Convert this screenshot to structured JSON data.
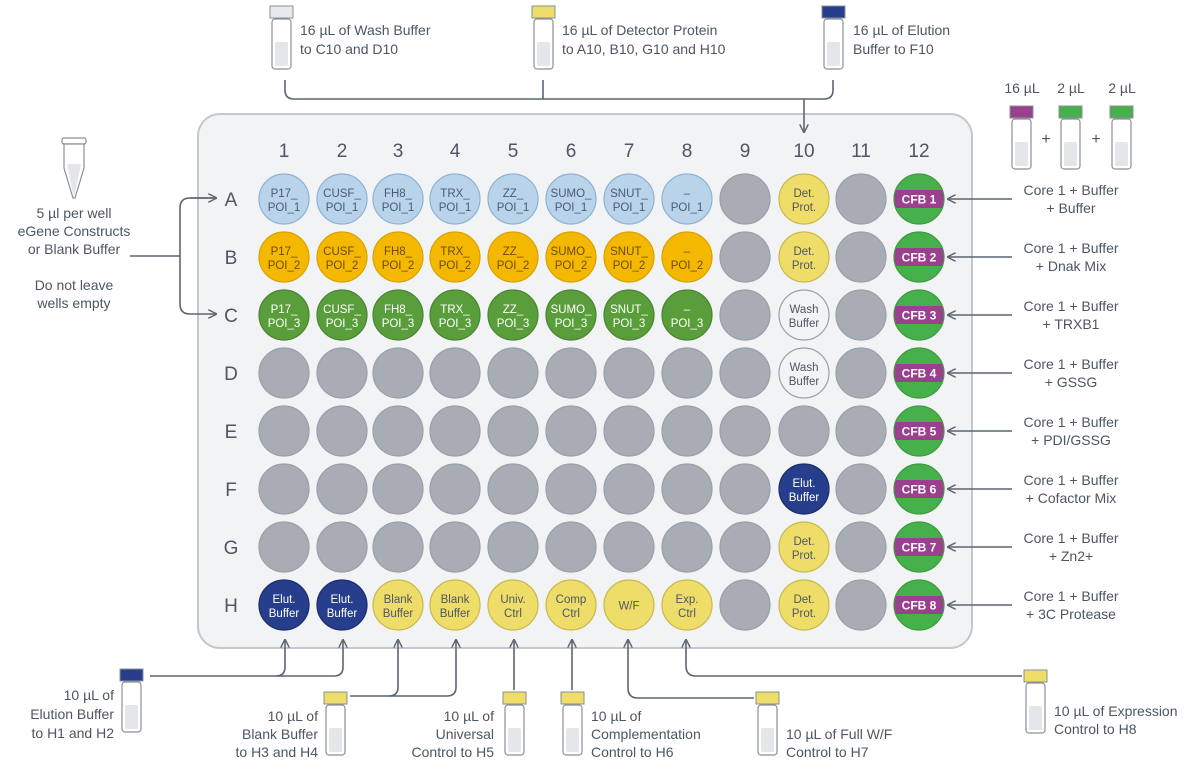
{
  "columns": [
    "1",
    "2",
    "3",
    "4",
    "5",
    "6",
    "7",
    "8",
    "9",
    "10",
    "11",
    "12"
  ],
  "rows": [
    "A",
    "B",
    "C",
    "D",
    "E",
    "F",
    "G",
    "H"
  ],
  "colors": {
    "plate_fill": "#f2f3f5",
    "plate_border": "#c3c8cf",
    "empty_well": "#a7acb5",
    "blue_light": "#b9d3ea",
    "orange": "#f5b800",
    "green": "#5a9e3c",
    "yellow": "#efdd6a",
    "navy": "#263e8c",
    "white_well": "#f2f3f5",
    "magenta": "#9b3f8f",
    "green_bright": "#46b04a",
    "line": "#5d6570",
    "text": "#4d5662"
  },
  "wells": {
    "A": [
      {
        "l1": "P17_",
        "l2": "POI_1",
        "style": "blue"
      },
      {
        "l1": "CUSF_",
        "l2": "POI_1",
        "style": "blue"
      },
      {
        "l1": "FH8_",
        "l2": "POI_1",
        "style": "blue"
      },
      {
        "l1": "TRX_",
        "l2": "POI_1",
        "style": "blue"
      },
      {
        "l1": "ZZ_",
        "l2": "POI_1",
        "style": "blue"
      },
      {
        "l1": "SUMO_",
        "l2": "POI_1",
        "style": "blue"
      },
      {
        "l1": "SNUT_",
        "l2": "POI_1",
        "style": "blue"
      },
      {
        "l1": "–",
        "l2": "POI_1",
        "style": "blue"
      },
      {
        "l1": "",
        "l2": "",
        "style": "empty"
      },
      {
        "l1": "Det.",
        "l2": "Prot.",
        "style": "yellow"
      },
      {
        "l1": "",
        "l2": "",
        "style": "empty"
      },
      {
        "l1": "CFB 1",
        "l2": "",
        "style": "cfb"
      }
    ],
    "B": [
      {
        "l1": "P17_",
        "l2": "POI_2",
        "style": "orange"
      },
      {
        "l1": "CUSF_",
        "l2": "POI_2",
        "style": "orange"
      },
      {
        "l1": "FH8_",
        "l2": "POI_2",
        "style": "orange"
      },
      {
        "l1": "TRX_",
        "l2": "POI_2",
        "style": "orange"
      },
      {
        "l1": "ZZ_",
        "l2": "POI_2",
        "style": "orange"
      },
      {
        "l1": "SUMO_",
        "l2": "POI_2",
        "style": "orange"
      },
      {
        "l1": "SNUT_",
        "l2": "POI_2",
        "style": "orange"
      },
      {
        "l1": "–",
        "l2": "POI_2",
        "style": "orange"
      },
      {
        "l1": "",
        "l2": "",
        "style": "empty"
      },
      {
        "l1": "Det.",
        "l2": "Prot.",
        "style": "yellow"
      },
      {
        "l1": "",
        "l2": "",
        "style": "empty"
      },
      {
        "l1": "CFB 2",
        "l2": "",
        "style": "cfb"
      }
    ],
    "C": [
      {
        "l1": "P17_",
        "l2": "POI_3",
        "style": "green"
      },
      {
        "l1": "CUSF_",
        "l2": "POI_3",
        "style": "green"
      },
      {
        "l1": "FH8_",
        "l2": "POI_3",
        "style": "green"
      },
      {
        "l1": "TRX_",
        "l2": "POI_3",
        "style": "green"
      },
      {
        "l1": "ZZ_",
        "l2": "POI_3",
        "style": "green"
      },
      {
        "l1": "SUMO_",
        "l2": "POI_3",
        "style": "green"
      },
      {
        "l1": "SNUT_",
        "l2": "POI_3",
        "style": "green"
      },
      {
        "l1": "–",
        "l2": "POI_3",
        "style": "green"
      },
      {
        "l1": "",
        "l2": "",
        "style": "empty"
      },
      {
        "l1": "Wash",
        "l2": "Buffer",
        "style": "white"
      },
      {
        "l1": "",
        "l2": "",
        "style": "empty"
      },
      {
        "l1": "CFB 3",
        "l2": "",
        "style": "cfb"
      }
    ],
    "D": [
      {
        "l1": "",
        "l2": "",
        "style": "empty"
      },
      {
        "l1": "",
        "l2": "",
        "style": "empty"
      },
      {
        "l1": "",
        "l2": "",
        "style": "empty"
      },
      {
        "l1": "",
        "l2": "",
        "style": "empty"
      },
      {
        "l1": "",
        "l2": "",
        "style": "empty"
      },
      {
        "l1": "",
        "l2": "",
        "style": "empty"
      },
      {
        "l1": "",
        "l2": "",
        "style": "empty"
      },
      {
        "l1": "",
        "l2": "",
        "style": "empty"
      },
      {
        "l1": "",
        "l2": "",
        "style": "empty"
      },
      {
        "l1": "Wash",
        "l2": "Buffer",
        "style": "white"
      },
      {
        "l1": "",
        "l2": "",
        "style": "empty"
      },
      {
        "l1": "CFB 4",
        "l2": "",
        "style": "cfb"
      }
    ],
    "E": [
      {
        "l1": "",
        "l2": "",
        "style": "empty"
      },
      {
        "l1": "",
        "l2": "",
        "style": "empty"
      },
      {
        "l1": "",
        "l2": "",
        "style": "empty"
      },
      {
        "l1": "",
        "l2": "",
        "style": "empty"
      },
      {
        "l1": "",
        "l2": "",
        "style": "empty"
      },
      {
        "l1": "",
        "l2": "",
        "style": "empty"
      },
      {
        "l1": "",
        "l2": "",
        "style": "empty"
      },
      {
        "l1": "",
        "l2": "",
        "style": "empty"
      },
      {
        "l1": "",
        "l2": "",
        "style": "empty"
      },
      {
        "l1": "",
        "l2": "",
        "style": "empty"
      },
      {
        "l1": "",
        "l2": "",
        "style": "empty"
      },
      {
        "l1": "CFB 5",
        "l2": "",
        "style": "cfb"
      }
    ],
    "F": [
      {
        "l1": "",
        "l2": "",
        "style": "empty"
      },
      {
        "l1": "",
        "l2": "",
        "style": "empty"
      },
      {
        "l1": "",
        "l2": "",
        "style": "empty"
      },
      {
        "l1": "",
        "l2": "",
        "style": "empty"
      },
      {
        "l1": "",
        "l2": "",
        "style": "empty"
      },
      {
        "l1": "",
        "l2": "",
        "style": "empty"
      },
      {
        "l1": "",
        "l2": "",
        "style": "empty"
      },
      {
        "l1": "",
        "l2": "",
        "style": "empty"
      },
      {
        "l1": "",
        "l2": "",
        "style": "empty"
      },
      {
        "l1": "Elut.",
        "l2": "Buffer",
        "style": "navy"
      },
      {
        "l1": "",
        "l2": "",
        "style": "empty"
      },
      {
        "l1": "CFB 6",
        "l2": "",
        "style": "cfb"
      }
    ],
    "G": [
      {
        "l1": "",
        "l2": "",
        "style": "empty"
      },
      {
        "l1": "",
        "l2": "",
        "style": "empty"
      },
      {
        "l1": "",
        "l2": "",
        "style": "empty"
      },
      {
        "l1": "",
        "l2": "",
        "style": "empty"
      },
      {
        "l1": "",
        "l2": "",
        "style": "empty"
      },
      {
        "l1": "",
        "l2": "",
        "style": "empty"
      },
      {
        "l1": "",
        "l2": "",
        "style": "empty"
      },
      {
        "l1": "",
        "l2": "",
        "style": "empty"
      },
      {
        "l1": "",
        "l2": "",
        "style": "empty"
      },
      {
        "l1": "Det.",
        "l2": "Prot.",
        "style": "yellow"
      },
      {
        "l1": "",
        "l2": "",
        "style": "empty"
      },
      {
        "l1": "CFB 7",
        "l2": "",
        "style": "cfb"
      }
    ],
    "H": [
      {
        "l1": "Elut.",
        "l2": "Buffer",
        "style": "navy"
      },
      {
        "l1": "Elut.",
        "l2": "Buffer",
        "style": "navy"
      },
      {
        "l1": "Blank",
        "l2": "Buffer",
        "style": "yellow"
      },
      {
        "l1": "Blank",
        "l2": "Buffer",
        "style": "yellow"
      },
      {
        "l1": "Univ.",
        "l2": "Ctrl",
        "style": "yellow"
      },
      {
        "l1": "Comp",
        "l2": "Ctrl",
        "style": "yellow"
      },
      {
        "l1": "W/F",
        "l2": "",
        "style": "yellow"
      },
      {
        "l1": "Exp.",
        "l2": "Ctrl",
        "style": "yellow"
      },
      {
        "l1": "",
        "l2": "",
        "style": "empty"
      },
      {
        "l1": "Det.",
        "l2": "Prot.",
        "style": "yellow"
      },
      {
        "l1": "",
        "l2": "",
        "style": "empty"
      },
      {
        "l1": "CFB 8",
        "l2": "",
        "style": "cfb"
      }
    ]
  },
  "top_annotations": [
    {
      "cap": "light",
      "lines": [
        "16 µL of Wash Buffer",
        "to C10 and D10"
      ]
    },
    {
      "cap": "yellow",
      "lines": [
        "16 µL of Detector Protein",
        "to  A10, B10, G10 and H10"
      ]
    },
    {
      "cap": "navy",
      "lines": [
        "16 µL of Elution",
        "Buffer to F10"
      ]
    }
  ],
  "left_annotation": {
    "lines_a": [
      "5 µl per well",
      "eGene Constructs",
      "or Blank Buffer"
    ],
    "lines_b": [
      "Do not leave",
      "wells empty"
    ]
  },
  "right_header": {
    "amounts": [
      "16 µL",
      "2 µL",
      "2 µL"
    ],
    "plus": "+"
  },
  "right_annotations": [
    [
      "Core 1 + Buffer",
      "+ Buffer"
    ],
    [
      "Core 1 + Buffer",
      "+ Dnak Mix"
    ],
    [
      "Core 1 + Buffer",
      "+ TRXB1"
    ],
    [
      "Core 1 + Buffer",
      "+ GSSG"
    ],
    [
      "Core 1 + Buffer",
      "+ PDI/GSSG"
    ],
    [
      "Core 1 + Buffer",
      "+ Cofactor Mix"
    ],
    [
      "Core 1 + Buffer",
      "+ Zn2+"
    ],
    [
      "Core 1 + Buffer",
      "+ 3C Protease"
    ]
  ],
  "bottom_annotations": [
    {
      "lines": [
        "10 µL of",
        "Elution Buffer",
        "to H1 and H2"
      ]
    },
    {
      "lines": [
        "10 µL of",
        "Blank Buffer",
        "to H3 and H4"
      ]
    },
    {
      "lines": [
        "10 µL of",
        "Universal",
        "Control to H5"
      ]
    },
    {
      "lines": [
        "10 µL of",
        "Complementation",
        "Control to H6"
      ]
    },
    {
      "lines": [
        "10 µL of Full W/F",
        "Control to H7"
      ]
    },
    {
      "lines": [
        "10 µL of Expression",
        "Control to H8"
      ]
    }
  ]
}
